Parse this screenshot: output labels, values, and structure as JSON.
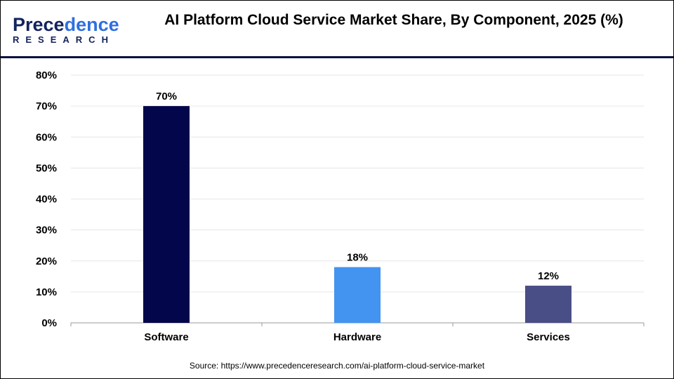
{
  "logo": {
    "line1": "Precedence",
    "line2": "RESEARCH"
  },
  "title": "AI Platform Cloud Service Market Share, By Component, 2025 (%)",
  "source": "Source: https://www.precedenceresearch.com/ai-platform-cloud-service-market",
  "chart_data": {
    "type": "bar",
    "title": "AI Platform Cloud Service Market Share, By Component, 2025 (%)",
    "categories": [
      "Software",
      "Hardware",
      "Services"
    ],
    "values": [
      70,
      18,
      12
    ],
    "data_labels": [
      "70%",
      "18%",
      "12%"
    ],
    "colors": [
      "#03064a",
      "#4394f0",
      "#4a4e86"
    ],
    "ylim": [
      0,
      80
    ],
    "yticks": [
      "0%",
      "10%",
      "20%",
      "30%",
      "40%",
      "50%",
      "60%",
      "70%",
      "80%"
    ],
    "grid": true,
    "xlabel": "",
    "ylabel": ""
  }
}
